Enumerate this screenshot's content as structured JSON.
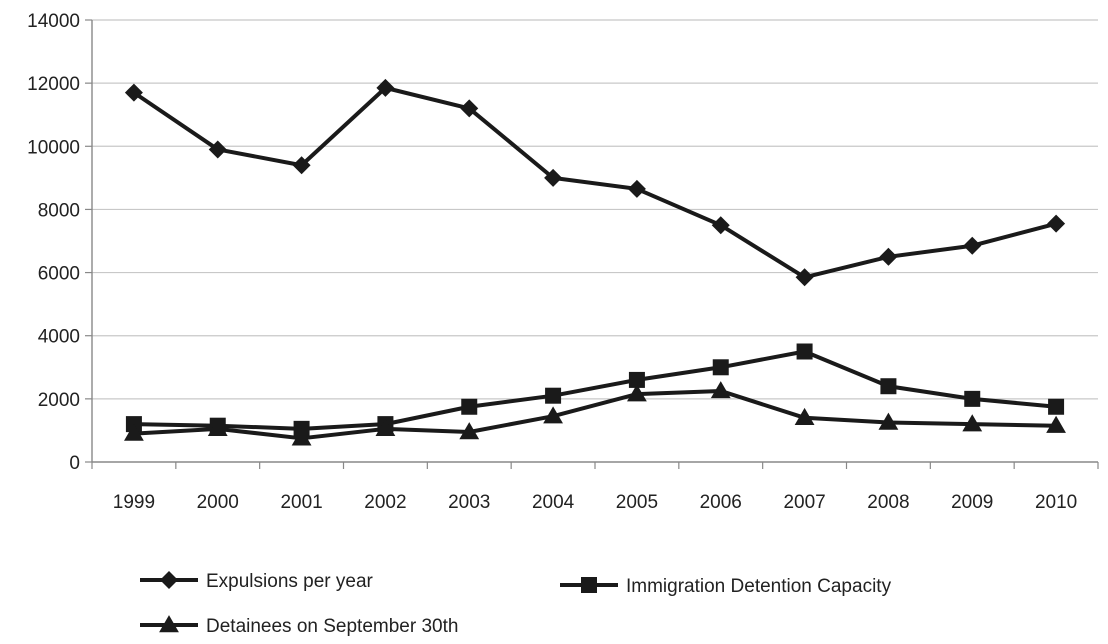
{
  "chart_data": {
    "type": "line",
    "title": "",
    "xlabel": "",
    "ylabel": "",
    "x": [
      "1999",
      "2000",
      "2001",
      "2002",
      "2003",
      "2004",
      "2005",
      "2006",
      "2007",
      "2008",
      "2009",
      "2010"
    ],
    "ylim": [
      0,
      14000
    ],
    "yticks": [
      "0",
      "2000",
      "4000",
      "6000",
      "8000",
      "10000",
      "12000",
      "14000"
    ],
    "grid": true,
    "legend_position": "bottom",
    "colors": {
      "series": "#1a1a1a",
      "grid": "#c8c8c8",
      "axis": "#888888"
    },
    "series": [
      {
        "name": "Expulsions per year",
        "marker": "diamond",
        "values": [
          11700,
          9900,
          9400,
          11850,
          11200,
          9000,
          8650,
          7500,
          5850,
          6500,
          6850,
          7550
        ]
      },
      {
        "name": "Immigration Detention Capacity",
        "marker": "square",
        "values": [
          1200,
          1150,
          1050,
          1200,
          1750,
          2100,
          2600,
          3000,
          3500,
          2400,
          2000,
          1750
        ]
      },
      {
        "name": "Detainees on September 30th",
        "marker": "triangle",
        "values": [
          900,
          1050,
          750,
          1050,
          950,
          1450,
          2150,
          2250,
          1400,
          1250,
          1200,
          1150
        ]
      }
    ]
  }
}
